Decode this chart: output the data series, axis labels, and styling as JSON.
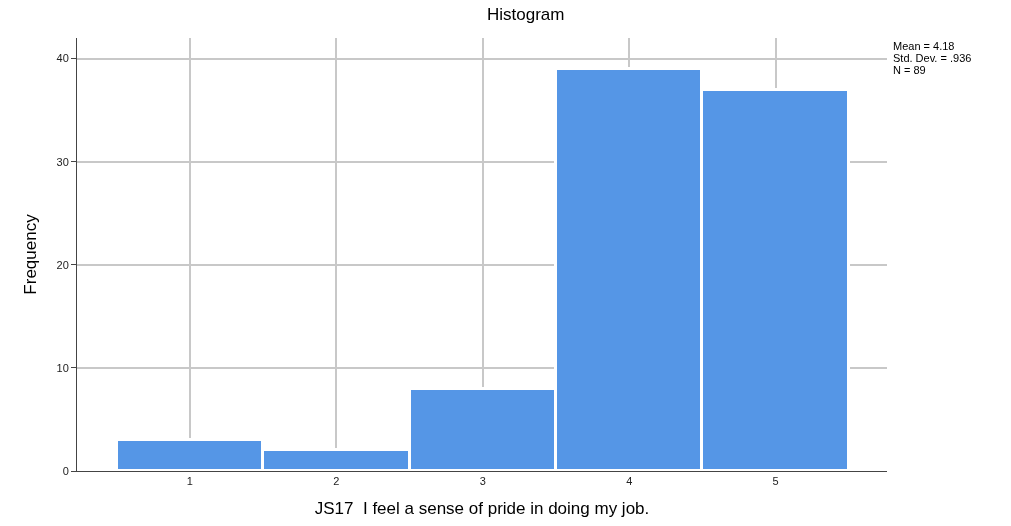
{
  "chart_data": {
    "type": "histogram",
    "title": "Histogram",
    "xlabel": "JS17  I feel a sense of pride in doing my job.",
    "ylabel": "Frequency",
    "bins": [
      0.5,
      1.5,
      2.5,
      3.5,
      4.5,
      5.5
    ],
    "values": [
      3,
      2,
      8,
      39,
      37
    ],
    "color": "#5596e6",
    "xlim": [
      0.23,
      5.76
    ],
    "xticks": [
      1,
      2,
      3,
      4,
      5
    ],
    "ylim": [
      0,
      42
    ],
    "yticks": [
      0,
      10,
      20,
      30,
      40
    ],
    "grid": true,
    "annotations": [
      "Mean = 4.18",
      "Std. Dev. = .936",
      "N = 89"
    ]
  }
}
